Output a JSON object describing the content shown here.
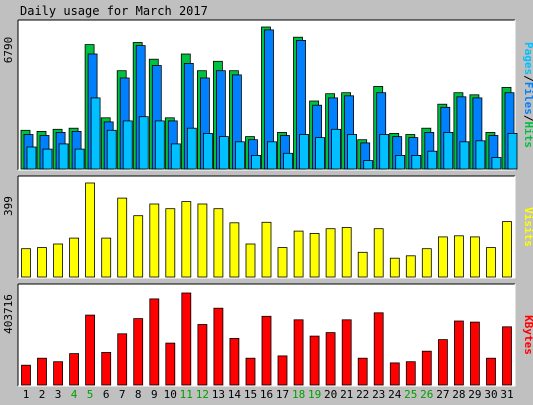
{
  "title": "Daily usage for March 2017",
  "colors": {
    "frame_bg": "#c0c0c0",
    "panel_bg": "#ffffff",
    "hits": "#00c040",
    "files": "#0080ff",
    "pages": "#00c0ff",
    "visits": "#ffff00",
    "kbytes": "#ff0000",
    "weekend_label": "#00a000",
    "weekday_label": "#000000"
  },
  "chart_data": [
    {
      "type": "bar",
      "panel": "usage",
      "ymax_label": "6790",
      "ylim": [
        0,
        6790
      ],
      "right_label_parts": [
        {
          "text": "Pages",
          "color": "#00c0ff"
        },
        {
          "text": "/",
          "color": "#000000"
        },
        {
          "text": "Files",
          "color": "#0080ff"
        },
        {
          "text": "/",
          "color": "#000000"
        },
        {
          "text": "Hits",
          "color": "#00c040"
        }
      ],
      "categories": [
        "1",
        "2",
        "3",
        "4",
        "5",
        "6",
        "7",
        "8",
        "9",
        "10",
        "11",
        "12",
        "13",
        "14",
        "15",
        "16",
        "17",
        "18",
        "19",
        "20",
        "21",
        "22",
        "23",
        "24",
        "25",
        "26",
        "27",
        "28",
        "29",
        "30",
        "31"
      ],
      "series": [
        {
          "name": "Hits",
          "values": [
            1850,
            1800,
            1900,
            1950,
            5950,
            2450,
            4700,
            6050,
            5250,
            2450,
            5500,
            4700,
            5150,
            4700,
            1550,
            6790,
            1750,
            6300,
            3250,
            3600,
            3650,
            1400,
            3950,
            1700,
            1650,
            1950,
            3100,
            3650,
            3550,
            1750,
            3900
          ]
        },
        {
          "name": "Files",
          "values": [
            1650,
            1600,
            1750,
            1800,
            5500,
            2250,
            4350,
            5900,
            4950,
            2300,
            5050,
            4350,
            4700,
            4500,
            1400,
            6650,
            1600,
            6150,
            3050,
            3400,
            3500,
            1250,
            3650,
            1550,
            1500,
            1750,
            2950,
            3450,
            3400,
            1600,
            3650
          ]
        },
        {
          "name": "Pages",
          "values": [
            1050,
            950,
            1200,
            950,
            3400,
            1850,
            2300,
            2500,
            2300,
            1200,
            1950,
            1700,
            1550,
            1300,
            650,
            1300,
            750,
            1650,
            1500,
            1900,
            1650,
            400,
            1650,
            650,
            650,
            850,
            1750,
            1300,
            1350,
            550,
            1700
          ]
        }
      ]
    },
    {
      "type": "bar",
      "panel": "visits",
      "ymax_label": "399",
      "ylim": [
        0,
        399
      ],
      "right_label_parts": [
        {
          "text": "Visits",
          "color": "#ffff00"
        }
      ],
      "categories": [
        "1",
        "2",
        "3",
        "4",
        "5",
        "6",
        "7",
        "8",
        "9",
        "10",
        "11",
        "12",
        "13",
        "14",
        "15",
        "16",
        "17",
        "18",
        "19",
        "20",
        "21",
        "22",
        "23",
        "24",
        "25",
        "26",
        "27",
        "28",
        "29",
        "30",
        "31"
      ],
      "series": [
        {
          "name": "Visits",
          "values": [
            120,
            125,
            140,
            165,
            399,
            165,
            335,
            260,
            310,
            290,
            320,
            310,
            290,
            230,
            140,
            232,
            125,
            195,
            185,
            205,
            210,
            105,
            205,
            80,
            90,
            120,
            170,
            175,
            170,
            125,
            235
          ]
        }
      ]
    },
    {
      "type": "bar",
      "panel": "kbytes",
      "ymax_label": "403716",
      "ylim": [
        0,
        403716
      ],
      "right_label_parts": [
        {
          "text": "KBytes",
          "color": "#ff0000"
        }
      ],
      "categories": [
        "1",
        "2",
        "3",
        "4",
        "5",
        "6",
        "7",
        "8",
        "9",
        "10",
        "11",
        "12",
        "13",
        "14",
        "15",
        "16",
        "17",
        "18",
        "19",
        "20",
        "21",
        "22",
        "23",
        "24",
        "25",
        "26",
        "27",
        "28",
        "29",
        "30",
        "31"
      ],
      "series": [
        {
          "name": "KBytes",
          "values": [
            85000,
            115000,
            100000,
            135000,
            300000,
            140000,
            220000,
            285000,
            370000,
            180000,
            395000,
            260000,
            330000,
            200000,
            115000,
            295000,
            125000,
            280000,
            210000,
            225000,
            280000,
            115000,
            310000,
            95000,
            100000,
            145000,
            195000,
            275000,
            270000,
            115000,
            250000
          ]
        }
      ]
    }
  ],
  "weekend_days": [
    4,
    5,
    11,
    12,
    18,
    19,
    25,
    26
  ]
}
